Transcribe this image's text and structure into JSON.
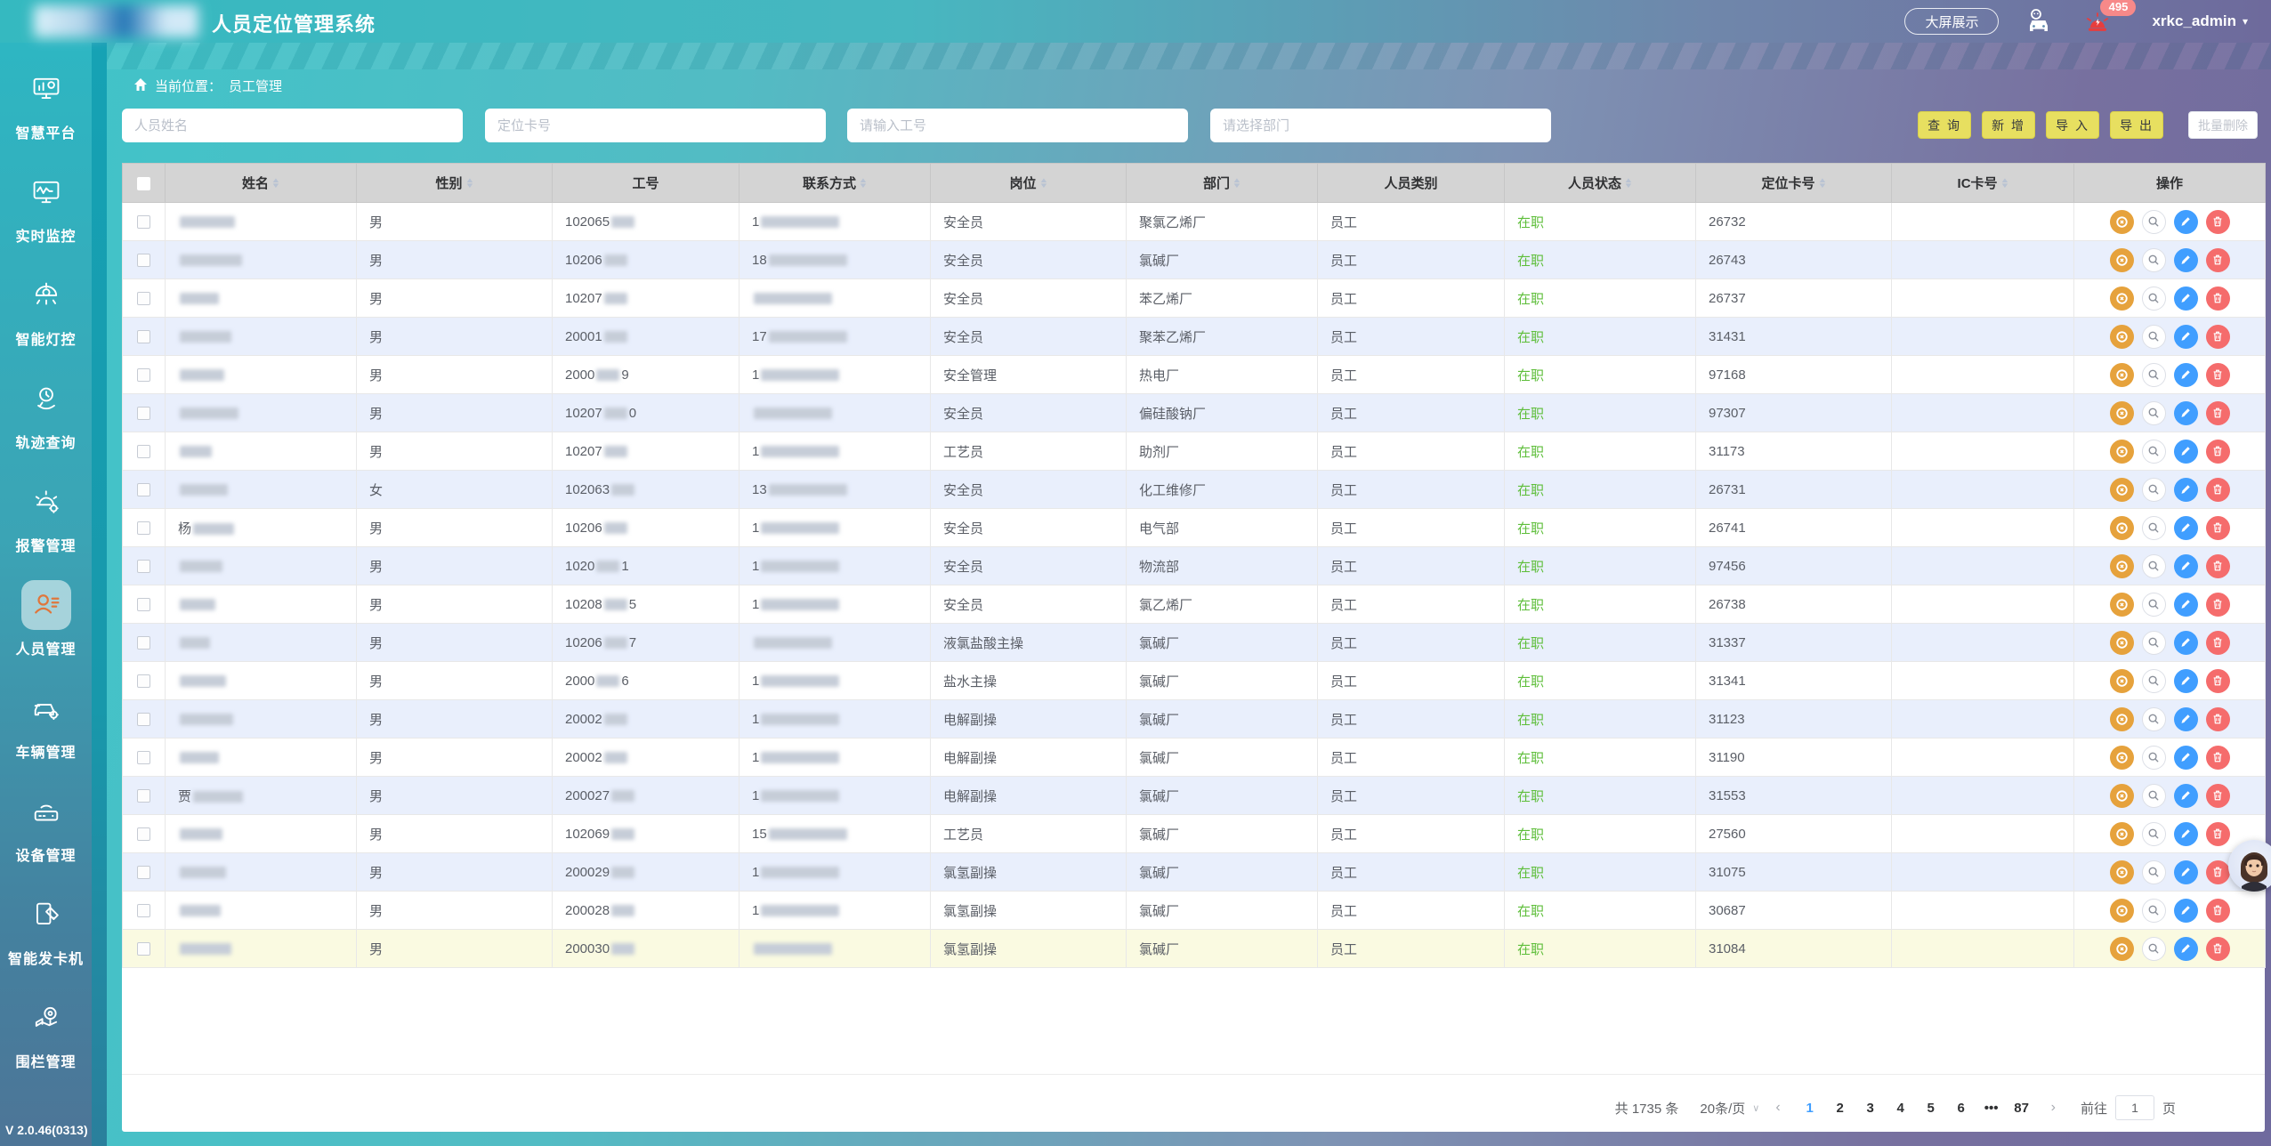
{
  "header": {
    "title": "人员定位管理系统",
    "big_screen_label": "大屏展示",
    "alarm_count": "495",
    "username": "xrkc_admin",
    "user_caret": "▾"
  },
  "sidebar": {
    "items": [
      {
        "label": "智慧平台",
        "icon": "smart-platform-icon",
        "active": false
      },
      {
        "label": "实时监控",
        "icon": "realtime-monitor-icon",
        "active": false
      },
      {
        "label": "智能灯控",
        "icon": "smart-light-icon",
        "active": false
      },
      {
        "label": "轨迹查询",
        "icon": "track-query-icon",
        "active": false
      },
      {
        "label": "报警管理",
        "icon": "alarm-manage-icon",
        "active": false
      },
      {
        "label": "人员管理",
        "icon": "personnel-manage-icon",
        "active": true
      },
      {
        "label": "车辆管理",
        "icon": "vehicle-manage-icon",
        "active": false
      },
      {
        "label": "设备管理",
        "icon": "device-manage-icon",
        "active": false
      },
      {
        "label": "智能发卡机",
        "icon": "card-dispenser-icon",
        "active": false
      },
      {
        "label": "围栏管理",
        "icon": "fence-manage-icon",
        "active": false
      }
    ],
    "version": "V 2.0.46(0313)"
  },
  "breadcrumb": {
    "prefix": "当前位置：",
    "current": "员工管理"
  },
  "filters": {
    "name_placeholder": "人员姓名",
    "card_placeholder": "定位卡号",
    "workno_placeholder": "请输入工号",
    "dept_placeholder": "请选择部门"
  },
  "toolbar": {
    "query": "查 询",
    "add": "新 增",
    "import": "导 入",
    "export": "导 出",
    "batch_delete": "批量删除"
  },
  "table": {
    "columns": [
      {
        "label": "姓名",
        "sortable": true
      },
      {
        "label": "性别",
        "sortable": true
      },
      {
        "label": "工号",
        "sortable": false
      },
      {
        "label": "联系方式",
        "sortable": true
      },
      {
        "label": "岗位",
        "sortable": true
      },
      {
        "label": "部门",
        "sortable": true
      },
      {
        "label": "人员类别",
        "sortable": false
      },
      {
        "label": "人员状态",
        "sortable": true
      },
      {
        "label": "定位卡号",
        "sortable": true
      },
      {
        "label": "IC卡号",
        "sortable": true
      },
      {
        "label": "操作",
        "sortable": false
      }
    ],
    "rows": [
      {
        "name_prefix": "",
        "gender": "男",
        "work_prefix": "102065",
        "work_suffix": "",
        "phone_prefix": "1",
        "position": "安全员",
        "dept": "聚氯乙烯厂",
        "category": "员工",
        "status": "在职",
        "card": "26732",
        "ic": ""
      },
      {
        "name_prefix": "",
        "gender": "男",
        "work_prefix": "10206",
        "work_suffix": "",
        "phone_prefix": "18",
        "position": "安全员",
        "dept": "氯碱厂",
        "category": "员工",
        "status": "在职",
        "card": "26743",
        "ic": ""
      },
      {
        "name_prefix": "",
        "gender": "男",
        "work_prefix": "10207",
        "work_suffix": "",
        "phone_prefix": "",
        "position": "安全员",
        "dept": "苯乙烯厂",
        "category": "员工",
        "status": "在职",
        "card": "26737",
        "ic": ""
      },
      {
        "name_prefix": "",
        "gender": "男",
        "work_prefix": "20001",
        "work_suffix": "",
        "phone_prefix": "17",
        "position": "安全员",
        "dept": "聚苯乙烯厂",
        "category": "员工",
        "status": "在职",
        "card": "31431",
        "ic": ""
      },
      {
        "name_prefix": "",
        "gender": "男",
        "work_prefix": "2000",
        "work_suffix": "9",
        "phone_prefix": "1",
        "position": "安全管理",
        "dept": "热电厂",
        "category": "员工",
        "status": "在职",
        "card": "97168",
        "ic": ""
      },
      {
        "name_prefix": "",
        "gender": "男",
        "work_prefix": "10207",
        "work_suffix": "0",
        "phone_prefix": "",
        "position": "安全员",
        "dept": "偏硅酸钠厂",
        "category": "员工",
        "status": "在职",
        "card": "97307",
        "ic": ""
      },
      {
        "name_prefix": "",
        "gender": "男",
        "work_prefix": "10207",
        "work_suffix": "",
        "phone_prefix": "1",
        "position": "工艺员",
        "dept": "助剂厂",
        "category": "员工",
        "status": "在职",
        "card": "31173",
        "ic": ""
      },
      {
        "name_prefix": "",
        "gender": "女",
        "work_prefix": "102063",
        "work_suffix": "",
        "phone_prefix": "13",
        "position": "安全员",
        "dept": "化工维修厂",
        "category": "员工",
        "status": "在职",
        "card": "26731",
        "ic": ""
      },
      {
        "name_prefix": "杨",
        "gender": "男",
        "work_prefix": "10206",
        "work_suffix": "",
        "phone_prefix": "1",
        "position": "安全员",
        "dept": "电气部",
        "category": "员工",
        "status": "在职",
        "card": "26741",
        "ic": ""
      },
      {
        "name_prefix": "",
        "gender": "男",
        "work_prefix": "1020",
        "work_suffix": "1",
        "phone_prefix": "1",
        "position": "安全员",
        "dept": "物流部",
        "category": "员工",
        "status": "在职",
        "card": "97456",
        "ic": ""
      },
      {
        "name_prefix": "",
        "gender": "男",
        "work_prefix": "10208",
        "work_suffix": "5",
        "phone_prefix": "1",
        "position": "安全员",
        "dept": "氯乙烯厂",
        "category": "员工",
        "status": "在职",
        "card": "26738",
        "ic": ""
      },
      {
        "name_prefix": "",
        "gender": "男",
        "work_prefix": "10206",
        "work_suffix": "7",
        "phone_prefix": "",
        "position": "液氯盐酸主操",
        "dept": "氯碱厂",
        "category": "员工",
        "status": "在职",
        "card": "31337",
        "ic": ""
      },
      {
        "name_prefix": "",
        "gender": "男",
        "work_prefix": "2000",
        "work_suffix": "6",
        "phone_prefix": "1",
        "position": "盐水主操",
        "dept": "氯碱厂",
        "category": "员工",
        "status": "在职",
        "card": "31341",
        "ic": ""
      },
      {
        "name_prefix": "",
        "gender": "男",
        "work_prefix": "20002",
        "work_suffix": "",
        "phone_prefix": "1",
        "position": "电解副操",
        "dept": "氯碱厂",
        "category": "员工",
        "status": "在职",
        "card": "31123",
        "ic": ""
      },
      {
        "name_prefix": "",
        "gender": "男",
        "work_prefix": "20002",
        "work_suffix": "",
        "phone_prefix": "1",
        "position": "电解副操",
        "dept": "氯碱厂",
        "category": "员工",
        "status": "在职",
        "card": "31190",
        "ic": ""
      },
      {
        "name_prefix": "贾",
        "gender": "男",
        "work_prefix": "200027",
        "work_suffix": "",
        "phone_prefix": "1",
        "position": "电解副操",
        "dept": "氯碱厂",
        "category": "员工",
        "status": "在职",
        "card": "31553",
        "ic": ""
      },
      {
        "name_prefix": "",
        "gender": "男",
        "work_prefix": "102069",
        "work_suffix": "",
        "phone_prefix": "15",
        "position": "工艺员",
        "dept": "氯碱厂",
        "category": "员工",
        "status": "在职",
        "card": "27560",
        "ic": ""
      },
      {
        "name_prefix": "",
        "gender": "男",
        "work_prefix": "200029",
        "work_suffix": "",
        "phone_prefix": "1",
        "position": "氯氢副操",
        "dept": "氯碱厂",
        "category": "员工",
        "status": "在职",
        "card": "31075",
        "ic": ""
      },
      {
        "name_prefix": "",
        "gender": "男",
        "work_prefix": "200028",
        "work_suffix": "",
        "phone_prefix": "1",
        "position": "氯氢副操",
        "dept": "氯碱厂",
        "category": "员工",
        "status": "在职",
        "card": "30687",
        "ic": ""
      },
      {
        "name_prefix": "",
        "gender": "男",
        "work_prefix": "200030",
        "work_suffix": "",
        "phone_prefix": "",
        "position": "氯氢副操",
        "dept": "氯碱厂",
        "category": "员工",
        "status": "在职",
        "card": "31084",
        "ic": ""
      }
    ],
    "actions": [
      {
        "name": "locate-action-button",
        "kind": "locate",
        "color": "#e6a23c"
      },
      {
        "name": "view-action-button",
        "kind": "view",
        "color": "#ffffff"
      },
      {
        "name": "edit-action-button",
        "kind": "edit",
        "color": "#409eff"
      },
      {
        "name": "delete-action-button",
        "kind": "delete",
        "color": "#f56c6c"
      }
    ],
    "status_color": "#5ebe3a"
  },
  "pagination": {
    "total": "共 1735 条",
    "page_size": "20条/页",
    "pages": [
      "1",
      "2",
      "3",
      "4",
      "5",
      "6",
      "•••",
      "87"
    ],
    "active_page": "1",
    "prev": "‹",
    "next": "›",
    "goto_label": "前往",
    "goto_value": "1",
    "page_suffix": "页"
  }
}
